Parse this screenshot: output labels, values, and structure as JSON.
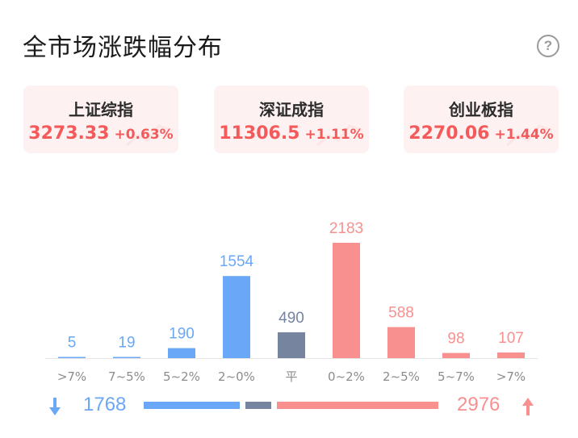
{
  "header": {
    "title": "全市场涨跌幅分布"
  },
  "indices": [
    {
      "name": "上证综指",
      "value": "3273.33",
      "change": "+0.63%"
    },
    {
      "name": "深证成指",
      "value": "11306.5",
      "change": "+1.11%"
    },
    {
      "name": "创业板指",
      "value": "2270.06",
      "change": "+1.44%"
    }
  ],
  "colors": {
    "down": "#6aa8f7",
    "flat": "#76849f",
    "up": "#f89090",
    "accent_text": "#f45a5a"
  },
  "chart_data": {
    "type": "bar",
    "categories": [
      ">7%",
      "7~5%",
      "5~2%",
      "2~0%",
      "平",
      "0~2%",
      "2~5%",
      "5~7%",
      ">7%"
    ],
    "values": [
      5,
      19,
      190,
      1554,
      490,
      2183,
      588,
      98,
      107
    ],
    "groups": [
      "down",
      "down",
      "down",
      "down",
      "flat",
      "up",
      "up",
      "up",
      "up"
    ],
    "title": "",
    "xlabel": "",
    "ylabel": "",
    "ylim": [
      0,
      2183
    ],
    "grid": false,
    "legend": "none"
  },
  "summary": {
    "down_count": "1768",
    "up_count": "2976",
    "down_icon": "arrow-down-icon",
    "up_icon": "arrow-up-icon"
  }
}
